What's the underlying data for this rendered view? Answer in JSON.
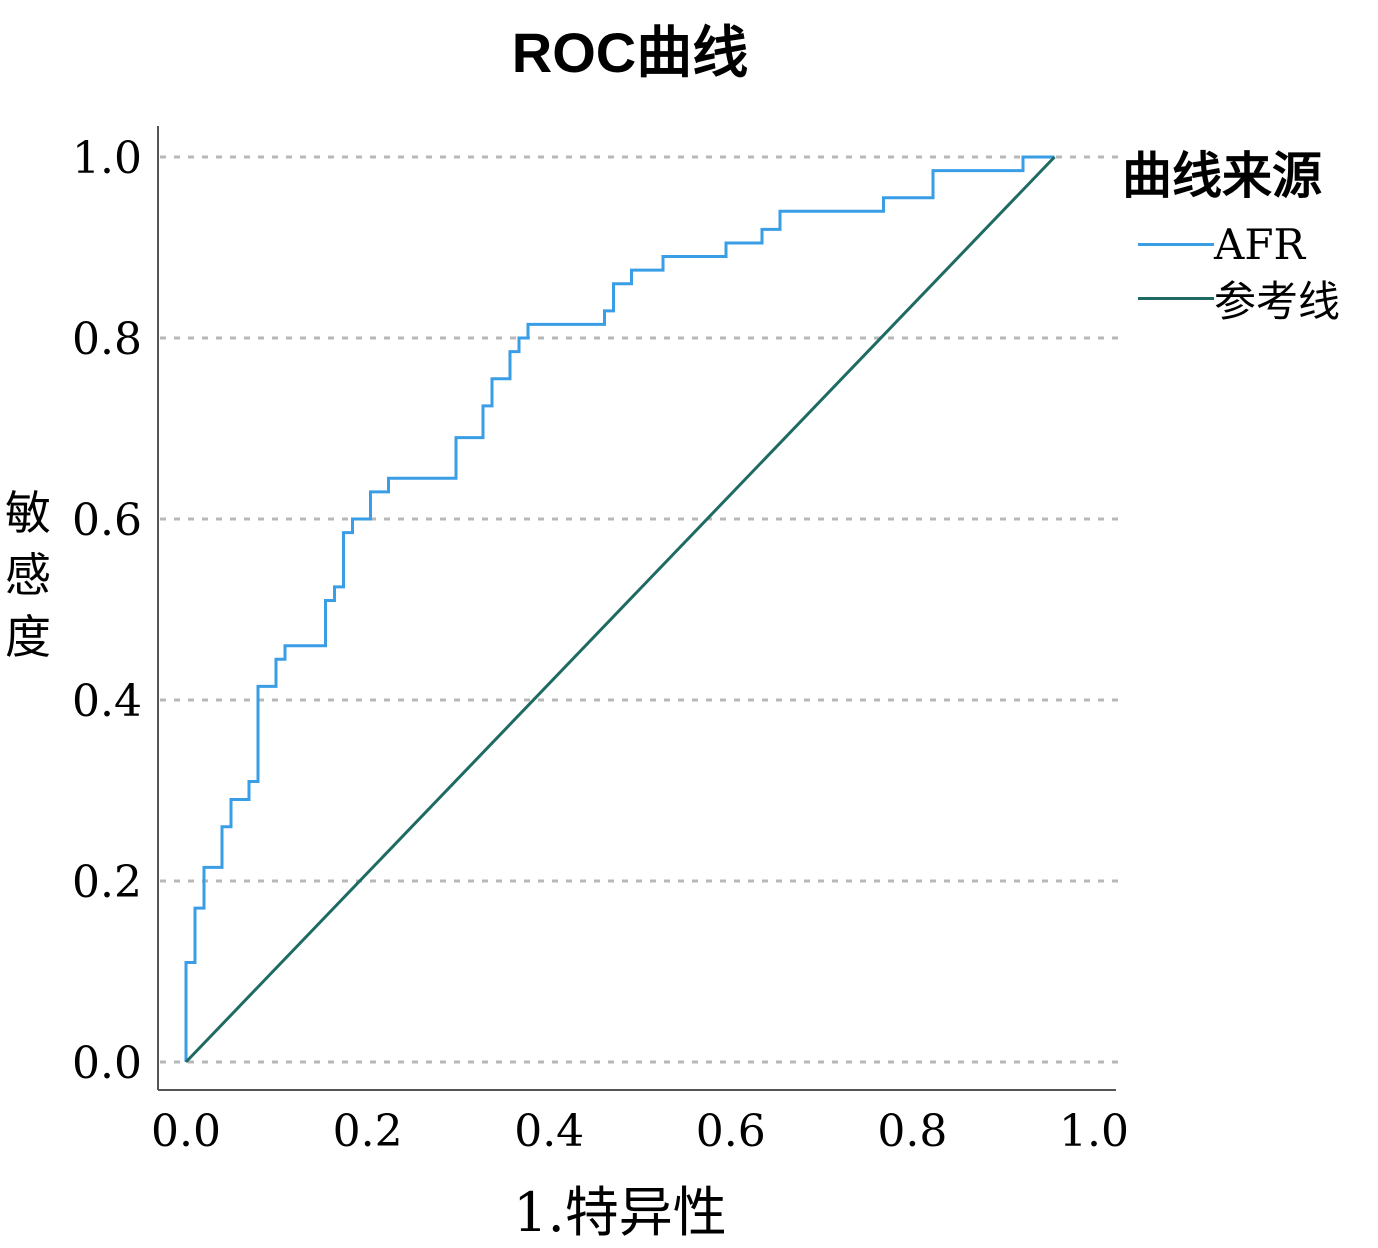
{
  "chart_data": {
    "type": "line",
    "title": "ROC曲线",
    "xlabel": "1.特异性",
    "ylabel": "敏感度",
    "xlim": [
      0,
      1
    ],
    "ylim": [
      0,
      1
    ],
    "x_ticks": [
      "0.0",
      "0.2",
      "0.4",
      "0.6",
      "0.8",
      "1.0"
    ],
    "y_ticks": [
      "0.0",
      "0.2",
      "0.4",
      "0.6",
      "0.8",
      "1.0"
    ],
    "grid": "horizontal dashed",
    "legend": {
      "title": "曲线来源",
      "placement": "right"
    },
    "series": [
      {
        "name": "AFR",
        "color": "#3a9ee6",
        "points": [
          [
            0.0,
            0.0
          ],
          [
            0.0,
            0.11
          ],
          [
            0.01,
            0.11
          ],
          [
            0.01,
            0.17
          ],
          [
            0.02,
            0.17
          ],
          [
            0.02,
            0.215
          ],
          [
            0.04,
            0.215
          ],
          [
            0.04,
            0.26
          ],
          [
            0.05,
            0.26
          ],
          [
            0.05,
            0.29
          ],
          [
            0.07,
            0.29
          ],
          [
            0.07,
            0.31
          ],
          [
            0.08,
            0.31
          ],
          [
            0.08,
            0.415
          ],
          [
            0.1,
            0.415
          ],
          [
            0.1,
            0.445
          ],
          [
            0.11,
            0.445
          ],
          [
            0.11,
            0.46
          ],
          [
            0.155,
            0.46
          ],
          [
            0.155,
            0.51
          ],
          [
            0.165,
            0.51
          ],
          [
            0.165,
            0.525
          ],
          [
            0.175,
            0.525
          ],
          [
            0.175,
            0.585
          ],
          [
            0.185,
            0.585
          ],
          [
            0.185,
            0.6
          ],
          [
            0.205,
            0.6
          ],
          [
            0.205,
            0.63
          ],
          [
            0.225,
            0.63
          ],
          [
            0.225,
            0.645
          ],
          [
            0.3,
            0.645
          ],
          [
            0.3,
            0.69
          ],
          [
            0.33,
            0.69
          ],
          [
            0.33,
            0.725
          ],
          [
            0.34,
            0.725
          ],
          [
            0.34,
            0.755
          ],
          [
            0.36,
            0.755
          ],
          [
            0.36,
            0.785
          ],
          [
            0.37,
            0.785
          ],
          [
            0.37,
            0.8
          ],
          [
            0.38,
            0.8
          ],
          [
            0.38,
            0.815
          ],
          [
            0.465,
            0.815
          ],
          [
            0.465,
            0.83
          ],
          [
            0.475,
            0.83
          ],
          [
            0.475,
            0.86
          ],
          [
            0.495,
            0.86
          ],
          [
            0.495,
            0.875
          ],
          [
            0.53,
            0.875
          ],
          [
            0.53,
            0.89
          ],
          [
            0.6,
            0.89
          ],
          [
            0.6,
            0.905
          ],
          [
            0.64,
            0.905
          ],
          [
            0.64,
            0.92
          ],
          [
            0.66,
            0.92
          ],
          [
            0.66,
            0.94
          ],
          [
            0.775,
            0.94
          ],
          [
            0.775,
            0.955
          ],
          [
            0.83,
            0.955
          ],
          [
            0.83,
            0.985
          ],
          [
            0.93,
            0.985
          ],
          [
            0.93,
            1.0
          ],
          [
            0.965,
            1.0
          ]
        ]
      },
      {
        "name": "参考线",
        "color": "#1f6b63",
        "points": [
          [
            0.0,
            0.0
          ],
          [
            0.965,
            1.0
          ]
        ]
      }
    ]
  }
}
